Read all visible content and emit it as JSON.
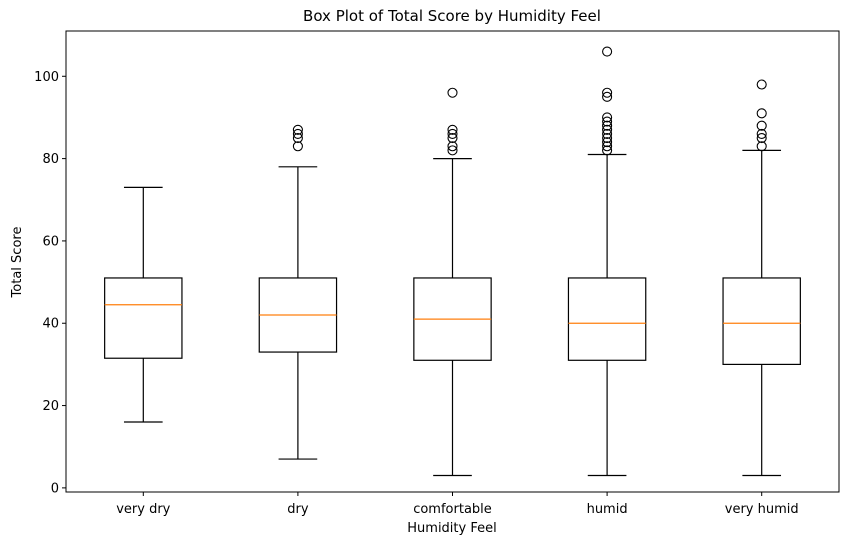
{
  "chart_data": {
    "type": "box",
    "title": "Box Plot of Total Score by Humidity Feel",
    "xlabel": "Humidity Feel",
    "ylabel": "Total Score",
    "ylim": [
      -1,
      111
    ],
    "yticks": [
      0,
      20,
      40,
      60,
      80,
      100
    ],
    "grid": false,
    "colors": {
      "box": "#000000",
      "median": "#ff7f0e",
      "background": "#ffffff"
    },
    "categories": [
      "very dry",
      "dry",
      "comfortable",
      "humid",
      "very humid"
    ],
    "boxes": [
      {
        "category": "very dry",
        "whisker_low": 16,
        "q1": 31.5,
        "median": 44.5,
        "q3": 51,
        "whisker_high": 73,
        "outliers": []
      },
      {
        "category": "dry",
        "whisker_low": 7,
        "q1": 33,
        "median": 42,
        "q3": 51,
        "whisker_high": 78,
        "outliers": [
          83,
          85,
          86,
          87
        ]
      },
      {
        "category": "comfortable",
        "whisker_low": 3,
        "q1": 31,
        "median": 41,
        "q3": 51,
        "whisker_high": 80,
        "outliers": [
          82,
          83,
          85,
          86,
          87,
          96
        ]
      },
      {
        "category": "humid",
        "whisker_low": 3,
        "q1": 31,
        "median": 40,
        "q3": 51,
        "whisker_high": 81,
        "outliers": [
          82,
          83,
          84,
          85,
          86,
          87,
          88,
          89,
          90,
          95,
          96,
          106
        ]
      },
      {
        "category": "very humid",
        "whisker_low": 3,
        "q1": 30,
        "median": 40,
        "q3": 51,
        "whisker_high": 82,
        "outliers": [
          83,
          85,
          86,
          88,
          91,
          98
        ]
      }
    ]
  }
}
